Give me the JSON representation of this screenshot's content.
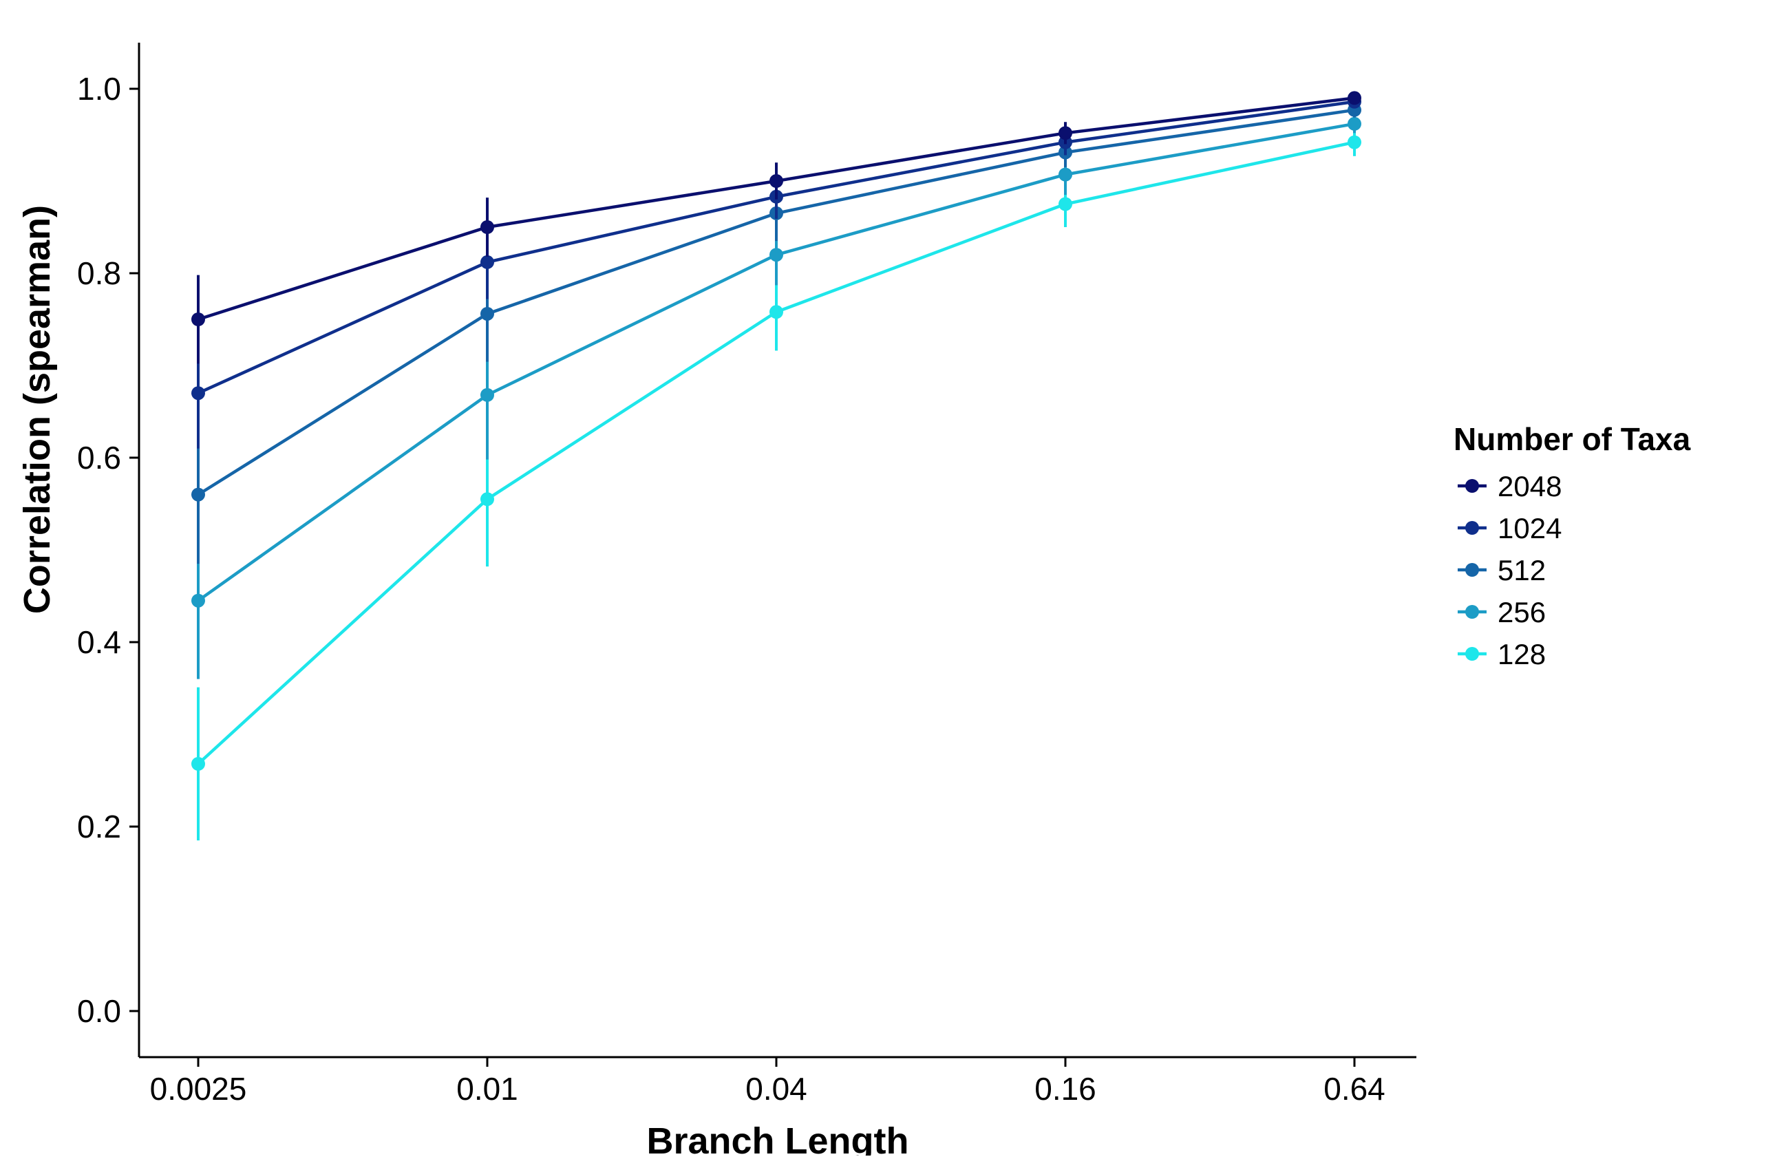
{
  "chart_data": {
    "type": "line",
    "xlabel": "Branch Length",
    "ylabel": "Correlation (spearman)",
    "categories": [
      "0.0025",
      "0.01",
      "0.04",
      "0.16",
      "0.64"
    ],
    "x_scale": "log",
    "ylim": [
      -0.05,
      1.05
    ],
    "yticks": [
      "0.0",
      "0.2",
      "0.4",
      "0.6",
      "0.8",
      "1.0"
    ],
    "grid": false,
    "legend": {
      "title": "Number of Taxa",
      "position": "right"
    },
    "series": [
      {
        "name": "2048",
        "color": "#0a0f6e",
        "values": [
          0.75,
          0.85,
          0.9,
          0.952,
          0.99
        ],
        "error": [
          0.048,
          0.032,
          0.02,
          0.012,
          0.005
        ]
      },
      {
        "name": "1024",
        "color": "#0f2f8c",
        "values": [
          0.67,
          0.812,
          0.883,
          0.942,
          0.986
        ],
        "error": [
          0.06,
          0.04,
          0.024,
          0.014,
          0.006
        ]
      },
      {
        "name": "512",
        "color": "#1565a8",
        "values": [
          0.56,
          0.756,
          0.865,
          0.931,
          0.977
        ],
        "error": [
          0.075,
          0.052,
          0.03,
          0.016,
          0.008
        ]
      },
      {
        "name": "256",
        "color": "#1c9cc6",
        "values": [
          0.445,
          0.668,
          0.82,
          0.907,
          0.962
        ],
        "error": [
          0.085,
          0.07,
          0.033,
          0.022,
          0.01
        ]
      },
      {
        "name": "128",
        "color": "#1ee6ea",
        "values": [
          0.268,
          0.555,
          0.758,
          0.875,
          0.942
        ],
        "error": [
          0.083,
          0.073,
          0.042,
          0.025,
          0.015
        ]
      }
    ]
  }
}
